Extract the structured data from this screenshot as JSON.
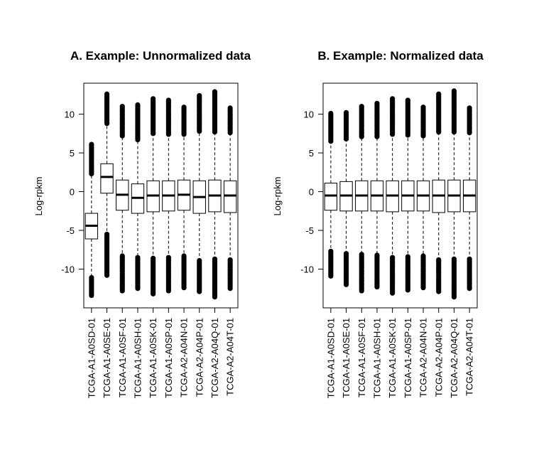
{
  "chart_data": [
    {
      "type": "box",
      "title": "A. Example: Unnormalized data",
      "ylabel": "Log-rpkm",
      "xlabel": "",
      "ylim": [
        -15,
        14
      ],
      "yticks": [
        -10,
        -5,
        0,
        5,
        10
      ],
      "categories": [
        "TCGA-A1-A0SD-01",
        "TCGA-A1-A0SE-01",
        "TCGA-A1-A0SF-01",
        "TCGA-A1-A0SH-01",
        "TCGA-A1-A0SK-01",
        "TCGA-A1-A0SP-01",
        "TCGA-A2-A04N-01",
        "TCGA-A2-A04P-01",
        "TCGA-A2-A04Q-01",
        "TCGA-A2-A04T-01"
      ],
      "boxes": [
        {
          "q1": -6.1,
          "median": -4.4,
          "q3": -2.8,
          "whisker_low": -11.0,
          "whisker_high": 2.2,
          "outliers_low": [
            -11.1,
            -13.4
          ],
          "outliers_high": [
            2.3,
            6.1
          ]
        },
        {
          "q1": -0.2,
          "median": 1.9,
          "q3": 3.6,
          "whisker_low": -5.4,
          "whisker_high": 8.7,
          "outliers_low": [
            -5.5,
            -10.8
          ],
          "outliers_high": [
            8.8,
            12.6
          ]
        },
        {
          "q1": -2.4,
          "median": -0.4,
          "q3": 1.5,
          "whisker_low": -8.2,
          "whisker_high": 7.1,
          "outliers_low": [
            -8.3,
            -12.8
          ],
          "outliers_high": [
            7.2,
            11.0
          ]
        },
        {
          "q1": -2.8,
          "median": -0.8,
          "q3": 1.0,
          "whisker_low": -8.4,
          "whisker_high": 6.6,
          "outliers_low": [
            -8.5,
            -12.5
          ],
          "outliers_high": [
            6.7,
            11.2
          ]
        },
        {
          "q1": -2.6,
          "median": -0.5,
          "q3": 1.4,
          "whisker_low": -8.5,
          "whisker_high": 7.4,
          "outliers_low": [
            -8.6,
            -13.2
          ],
          "outliers_high": [
            7.5,
            12.0
          ]
        },
        {
          "q1": -2.5,
          "median": -0.5,
          "q3": 1.4,
          "whisker_low": -8.4,
          "whisker_high": 7.3,
          "outliers_low": [
            -8.5,
            -12.8
          ],
          "outliers_high": [
            7.4,
            11.8
          ]
        },
        {
          "q1": -2.4,
          "median": -0.4,
          "q3": 1.5,
          "whisker_low": -8.2,
          "whisker_high": 7.3,
          "outliers_low": [
            -8.3,
            -12.4
          ],
          "outliers_high": [
            7.4,
            10.9
          ]
        },
        {
          "q1": -2.8,
          "median": -0.7,
          "q3": 1.4,
          "whisker_low": -8.8,
          "whisker_high": 7.7,
          "outliers_low": [
            -8.9,
            -12.9
          ],
          "outliers_high": [
            7.8,
            12.4
          ]
        },
        {
          "q1": -2.6,
          "median": -0.5,
          "q3": 1.5,
          "whisker_low": -8.6,
          "whisker_high": 7.6,
          "outliers_low": [
            -8.7,
            -13.6
          ],
          "outliers_high": [
            7.7,
            12.9
          ]
        },
        {
          "q1": -2.7,
          "median": -0.5,
          "q3": 1.4,
          "whisker_low": -8.7,
          "whisker_high": 7.5,
          "outliers_low": [
            -8.8,
            -12.5
          ],
          "outliers_high": [
            7.6,
            10.8
          ]
        }
      ]
    },
    {
      "type": "box",
      "title": "B. Example: Normalized data",
      "ylabel": "Log-rpkm",
      "xlabel": "",
      "ylim": [
        -15,
        14
      ],
      "yticks": [
        -10,
        -5,
        0,
        5,
        10
      ],
      "categories": [
        "TCGA-A1-A0SD-01",
        "TCGA-A1-A0SE-01",
        "TCGA-A1-A0SF-01",
        "TCGA-A1-A0SH-01",
        "TCGA-A1-A0SK-01",
        "TCGA-A1-A0SP-01",
        "TCGA-A2-A04N-01",
        "TCGA-A2-A04P-01",
        "TCGA-A2-A04Q-01",
        "TCGA-A2-A04T-01"
      ],
      "boxes": [
        {
          "q1": -2.4,
          "median": -0.5,
          "q3": 1.1,
          "whisker_low": -7.6,
          "whisker_high": 6.4,
          "outliers_low": [
            -7.7,
            -10.9
          ],
          "outliers_high": [
            6.5,
            10.1
          ]
        },
        {
          "q1": -2.5,
          "median": -0.5,
          "q3": 1.3,
          "whisker_low": -7.9,
          "whisker_high": 6.7,
          "outliers_low": [
            -8.0,
            -12.0
          ],
          "outliers_high": [
            6.8,
            10.2
          ]
        },
        {
          "q1": -2.5,
          "median": -0.5,
          "q3": 1.4,
          "whisker_low": -8.0,
          "whisker_high": 7.0,
          "outliers_low": [
            -8.1,
            -12.8
          ],
          "outliers_high": [
            7.1,
            11.0
          ]
        },
        {
          "q1": -2.5,
          "median": -0.5,
          "q3": 1.4,
          "whisker_low": -8.1,
          "whisker_high": 7.0,
          "outliers_low": [
            -8.2,
            -12.3
          ],
          "outliers_high": [
            7.1,
            11.4
          ]
        },
        {
          "q1": -2.6,
          "median": -0.5,
          "q3": 1.4,
          "whisker_low": -8.4,
          "whisker_high": 7.3,
          "outliers_low": [
            -8.5,
            -13.1
          ],
          "outliers_high": [
            7.4,
            12.0
          ]
        },
        {
          "q1": -2.5,
          "median": -0.5,
          "q3": 1.4,
          "whisker_low": -8.3,
          "whisker_high": 7.2,
          "outliers_low": [
            -8.4,
            -12.7
          ],
          "outliers_high": [
            7.3,
            11.8
          ]
        },
        {
          "q1": -2.5,
          "median": -0.5,
          "q3": 1.4,
          "whisker_low": -8.2,
          "whisker_high": 7.1,
          "outliers_low": [
            -8.3,
            -12.4
          ],
          "outliers_high": [
            7.2,
            10.9
          ]
        },
        {
          "q1": -2.7,
          "median": -0.5,
          "q3": 1.5,
          "whisker_low": -8.7,
          "whisker_high": 7.6,
          "outliers_low": [
            -8.8,
            -12.9
          ],
          "outliers_high": [
            7.7,
            12.6
          ]
        },
        {
          "q1": -2.6,
          "median": -0.5,
          "q3": 1.5,
          "whisker_low": -8.6,
          "whisker_high": 7.6,
          "outliers_low": [
            -8.7,
            -13.6
          ],
          "outliers_high": [
            7.7,
            13.0
          ]
        },
        {
          "q1": -2.6,
          "median": -0.5,
          "q3": 1.5,
          "whisker_low": -8.6,
          "whisker_high": 7.5,
          "outliers_low": [
            -8.7,
            -12.5
          ],
          "outliers_high": [
            7.6,
            10.8
          ]
        }
      ]
    }
  ]
}
